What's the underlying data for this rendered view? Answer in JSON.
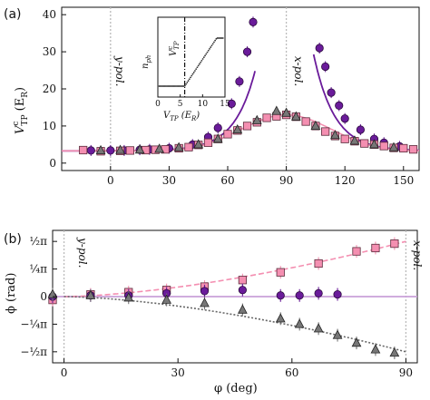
{
  "chart_data": [
    {
      "panel": "(a)",
      "type": "scatter",
      "ylabel": "V_TP^c (E_R)",
      "xlim": [
        -25,
        158
      ],
      "ylim": [
        -2,
        42
      ],
      "xticks": [
        0,
        30,
        60,
        90,
        120,
        150
      ],
      "yticks": [
        0,
        10,
        20,
        30,
        40
      ],
      "annotations": [
        "y-pol.",
        "x-pol."
      ],
      "series": [
        {
          "style": "circle",
          "color": "#6a1b9a",
          "points": [
            [
              -10,
              3.4
            ],
            [
              0,
              3.4
            ],
            [
              7,
              3.4
            ],
            [
              15,
              3.6
            ],
            [
              20,
              3.7
            ],
            [
              30,
              4.0
            ],
            [
              42,
              5.0
            ],
            [
              50,
              7.0
            ],
            [
              55,
              9.5
            ],
            [
              62,
              16.0
            ],
            [
              66,
              22.0
            ],
            [
              70,
              30.0
            ],
            [
              73,
              38.0
            ],
            [
              107,
              31.0
            ],
            [
              110,
              26.0
            ],
            [
              113,
              19.0
            ],
            [
              117,
              15.5
            ],
            [
              120,
              12.0
            ],
            [
              128,
              9.0
            ],
            [
              135,
              6.5
            ],
            [
              140,
              5.5
            ],
            [
              148,
              4.5
            ]
          ]
        },
        {
          "style": "square",
          "color": "#f48fb1",
          "points": [
            [
              -14,
              3.5
            ],
            [
              -5,
              3.2
            ],
            [
              5,
              3.3
            ],
            [
              10,
              3.4
            ],
            [
              18,
              3.5
            ],
            [
              23,
              3.6
            ],
            [
              28,
              3.7
            ],
            [
              35,
              4.0
            ],
            [
              40,
              4.3
            ],
            [
              45,
              4.9
            ],
            [
              50,
              5.5
            ],
            [
              55,
              6.5
            ],
            [
              60,
              7.8
            ],
            [
              65,
              8.8
            ],
            [
              70,
              10.0
            ],
            [
              75,
              11.0
            ],
            [
              80,
              12.2
            ],
            [
              85,
              12.6
            ],
            [
              90,
              13.0
            ],
            [
              95,
              12.5
            ],
            [
              100,
              11.2
            ],
            [
              105,
              10.0
            ],
            [
              110,
              8.5
            ],
            [
              115,
              7.3
            ],
            [
              120,
              6.5
            ],
            [
              125,
              5.9
            ],
            [
              130,
              5.3
            ],
            [
              135,
              5.0
            ],
            [
              140,
              4.6
            ],
            [
              145,
              4.1
            ],
            [
              150,
              4.0
            ],
            [
              155,
              3.7
            ]
          ]
        },
        {
          "style": "triangle",
          "color": "#777777",
          "points": [
            [
              -5,
              3.4
            ],
            [
              5,
              3.5
            ],
            [
              15,
              3.6
            ],
            [
              25,
              3.8
            ],
            [
              35,
              4.2
            ],
            [
              45,
              5.0
            ],
            [
              55,
              6.5
            ],
            [
              65,
              9.0
            ],
            [
              75,
              11.5
            ],
            [
              85,
              14.0
            ],
            [
              90,
              13.5
            ],
            [
              95,
              12.5
            ],
            [
              105,
              10.0
            ],
            [
              115,
              7.5
            ],
            [
              125,
              6.0
            ],
            [
              135,
              5.0
            ],
            [
              145,
              4.2
            ]
          ]
        }
      ],
      "inset": {
        "xlabel": "V_TP (E_R)",
        "ylabel": "n_ph",
        "marker_label": "V_TP^c",
        "xticks": [
          0,
          5,
          10,
          15
        ],
        "xlim": [
          0,
          15
        ],
        "threshold": 6.0
      }
    },
    {
      "panel": "(b)",
      "type": "scatter",
      "xlabel": "φ (deg)",
      "ylabel": "ϕ (rad)",
      "xlim": [
        -3,
        93
      ],
      "ylim": [
        -0.6,
        0.6
      ],
      "xticks": [
        0,
        30,
        60,
        90
      ],
      "yticks": [
        {
          "value": 0.5,
          "label": "½π"
        },
        {
          "value": 0.25,
          "label": "¼π"
        },
        {
          "value": 0,
          "label": "0"
        },
        {
          "value": -0.25,
          "label": "−¼π"
        },
        {
          "value": -0.5,
          "label": "−½π"
        }
      ],
      "annotations": [
        "y-pol.",
        "x-pol."
      ],
      "series": [
        {
          "style": "square",
          "color": "#f48fb1",
          "points": [
            [
              -3,
              -0.03
            ],
            [
              7,
              0.02
            ],
            [
              17,
              0.04
            ],
            [
              27,
              0.06
            ],
            [
              37,
              0.09
            ],
            [
              47,
              0.15
            ],
            [
              57,
              0.22
            ],
            [
              67,
              0.3
            ],
            [
              77,
              0.41
            ],
            [
              82,
              0.44
            ],
            [
              87,
              0.48
            ]
          ]
        },
        {
          "style": "circle",
          "color": "#6a1b9a",
          "points": [
            [
              -3,
              0.0
            ],
            [
              7,
              0.01
            ],
            [
              17,
              0.01
            ],
            [
              27,
              0.03
            ],
            [
              37,
              0.05
            ],
            [
              47,
              0.06
            ],
            [
              57,
              0.01
            ],
            [
              62,
              0.01
            ],
            [
              67,
              0.03
            ],
            [
              72,
              0.02
            ]
          ]
        },
        {
          "style": "triangle",
          "color": "#777777",
          "points": [
            [
              -3,
              0.02
            ],
            [
              7,
              0.01
            ],
            [
              17,
              -0.01
            ],
            [
              27,
              -0.03
            ],
            [
              37,
              -0.06
            ],
            [
              47,
              -0.12
            ],
            [
              57,
              -0.2
            ],
            [
              62,
              -0.25
            ],
            [
              67,
              -0.29
            ],
            [
              72,
              -0.35
            ],
            [
              77,
              -0.42
            ],
            [
              82,
              -0.48
            ],
            [
              87,
              -0.51
            ]
          ]
        }
      ]
    }
  ],
  "text": {
    "panel_a": "(a)",
    "panel_b": "(b)",
    "ylabel_a_main": "V",
    "ylabel_a_sup": "c",
    "ylabel_a_sub": "TP",
    "ylabel_a_unit": " (E",
    "ylabel_a_unit_sub": "R",
    "ylabel_a_close": ")",
    "ylabel_b": "ϕ (rad)",
    "xlabel_b": "φ (deg)",
    "ypol": "y-pol.",
    "xpol": "x-pol.",
    "inset_ylabel_main": "n",
    "inset_ylabel_sub": "ph",
    "inset_marker_main": "V",
    "inset_marker_sup": "c",
    "inset_marker_sub": "TP",
    "inset_xlabel_main": "V",
    "inset_xlabel_sub": "TP",
    "inset_xlabel_unit": " (E",
    "inset_xlabel_unit_sub": "R",
    "inset_xlabel_close": ")"
  }
}
